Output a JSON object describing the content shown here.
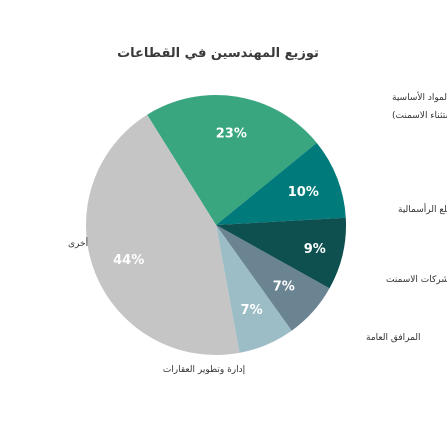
{
  "chart_data": {
    "type": "pie",
    "title": "توزيع المهندسين في القطاعات",
    "slices": [
      {
        "category": "المواد الأساسية (باستثناء الاسمنت)",
        "value": 23,
        "label": "23%",
        "color": "#3aa67f"
      },
      {
        "category": "السلع الرأسمالية",
        "value": 10,
        "label": "10%",
        "color": "#007a7a"
      },
      {
        "category": "شركات الاسمنت",
        "value": 9,
        "label": "9%",
        "color": "#0e5050"
      },
      {
        "category": "المرافق العامة",
        "value": 7,
        "label": "7%",
        "color": "#6a8491"
      },
      {
        "category": "إدارة وتطوير العقارات",
        "value": 7,
        "label": "7%",
        "color": "#9cbdc6"
      },
      {
        "category": "أخرى",
        "value": 44,
        "label": "44%",
        "color": "#c5c5c5"
      }
    ]
  }
}
